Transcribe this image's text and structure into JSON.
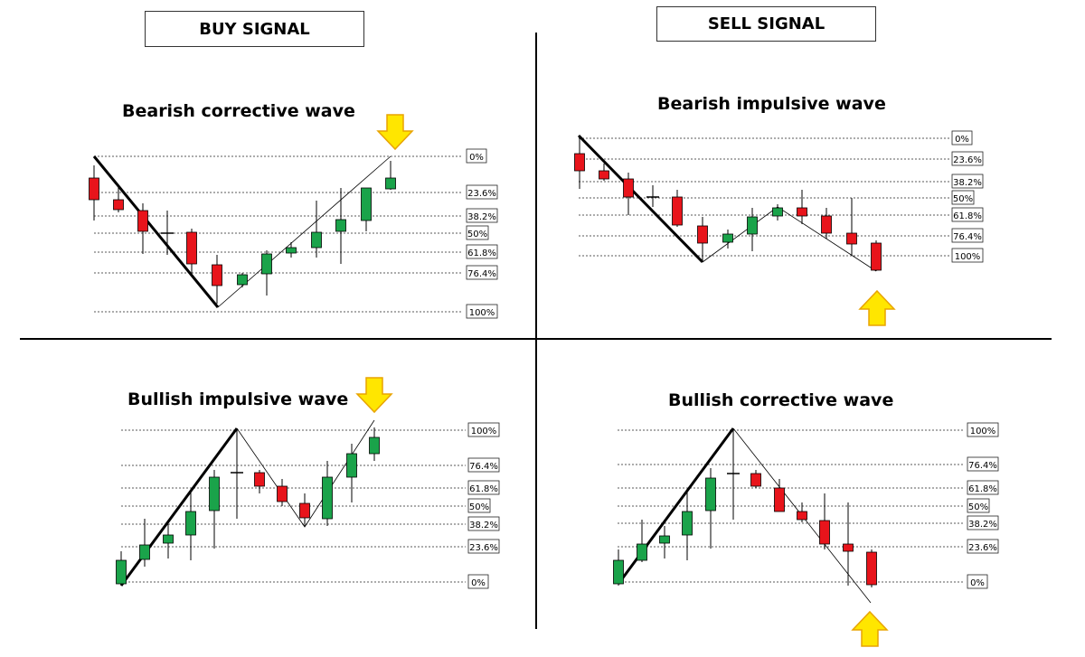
{
  "headers": {
    "buy": "BUY SIGNAL",
    "sell": "SELL SIGNAL"
  },
  "colors": {
    "bull": "#1aa34a",
    "bear": "#e8141b",
    "arrow": "#ffe600",
    "arrow_stroke": "#e8a400",
    "wick": "#000000"
  },
  "panels": [
    {
      "id": "bearish-corrective",
      "title": "Bearish corrective wave",
      "levels": [
        "0%",
        "23.6%",
        "38.2%",
        "50%",
        "61.8%",
        "76.4%",
        "100%"
      ],
      "arrow": "down-icon",
      "candles": [
        {
          "dir": "bear"
        },
        {
          "dir": "bear"
        },
        {
          "dir": "bear"
        },
        {
          "dir": "doji"
        },
        {
          "dir": "bear"
        },
        {
          "dir": "bear"
        },
        {
          "dir": "bull"
        },
        {
          "dir": "bull"
        },
        {
          "dir": "bull"
        },
        {
          "dir": "bull"
        },
        {
          "dir": "bull"
        },
        {
          "dir": "bull"
        },
        {
          "dir": "bull"
        }
      ]
    },
    {
      "id": "bearish-impulsive",
      "title": "Bearish impulsive wave",
      "levels": [
        "0%",
        "23.6%",
        "38.2%",
        "50%",
        "61.8%",
        "76.4%",
        "100%"
      ],
      "arrow": "up-icon",
      "candles": [
        {
          "dir": "bear"
        },
        {
          "dir": "bear"
        },
        {
          "dir": "bear"
        },
        {
          "dir": "doji"
        },
        {
          "dir": "bear"
        },
        {
          "dir": "bear"
        },
        {
          "dir": "bull"
        },
        {
          "dir": "bull"
        },
        {
          "dir": "bull"
        },
        {
          "dir": "bear"
        },
        {
          "dir": "bear"
        },
        {
          "dir": "bear"
        },
        {
          "dir": "bear"
        }
      ]
    },
    {
      "id": "bullish-impulsive",
      "title": "Bullish impulsive wave",
      "levels": [
        "100%",
        "76.4%",
        "61.8%",
        "50%",
        "38.2%",
        "23.6%",
        "0%"
      ],
      "arrow": "down-icon",
      "candles": [
        {
          "dir": "bull"
        },
        {
          "dir": "bull"
        },
        {
          "dir": "bull"
        },
        {
          "dir": "bull"
        },
        {
          "dir": "bull"
        },
        {
          "dir": "doji"
        },
        {
          "dir": "bear"
        },
        {
          "dir": "bear"
        },
        {
          "dir": "bear"
        },
        {
          "dir": "bull"
        },
        {
          "dir": "bull"
        },
        {
          "dir": "bull"
        }
      ]
    },
    {
      "id": "bullish-corrective",
      "title": "Bullish corrective wave",
      "levels": [
        "100%",
        "76.4%",
        "61.8%",
        "50%",
        "38.2%",
        "23.6%",
        "0%"
      ],
      "arrow": "up-icon",
      "candles": [
        {
          "dir": "bull"
        },
        {
          "dir": "bull"
        },
        {
          "dir": "bull"
        },
        {
          "dir": "bull"
        },
        {
          "dir": "bull"
        },
        {
          "dir": "doji"
        },
        {
          "dir": "bear"
        },
        {
          "dir": "bear"
        },
        {
          "dir": "bear"
        },
        {
          "dir": "bear"
        },
        {
          "dir": "bear"
        },
        {
          "dir": "bear"
        }
      ]
    }
  ]
}
